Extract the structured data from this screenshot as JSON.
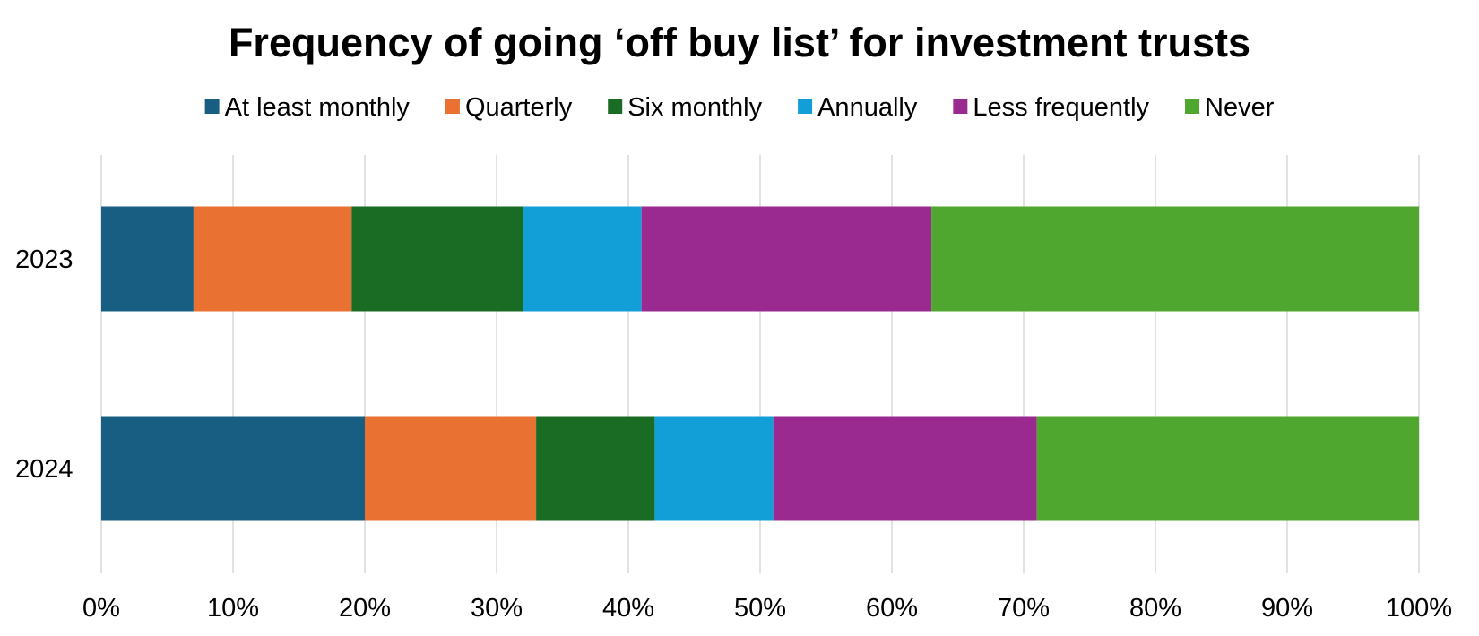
{
  "chart_data": {
    "type": "bar",
    "orientation": "horizontal",
    "stacked": true,
    "title": "Frequency of going ‘off buy list’ for investment trusts",
    "categories": [
      "2023",
      "2024"
    ],
    "series": [
      {
        "name": "At least monthly",
        "color": "#175e82",
        "values": [
          7,
          20
        ]
      },
      {
        "name": "Quarterly",
        "color": "#e97232",
        "values": [
          12,
          13
        ]
      },
      {
        "name": "Six monthly",
        "color": "#1a6b23",
        "values": [
          13,
          9
        ]
      },
      {
        "name": "Annually",
        "color": "#129fd8",
        "values": [
          9,
          9
        ]
      },
      {
        "name": "Less frequently",
        "color": "#9b2a90",
        "values": [
          22,
          20
        ]
      },
      {
        "name": "Never",
        "color": "#4fa72f",
        "values": [
          37,
          29
        ]
      }
    ],
    "xlim": [
      0,
      100
    ],
    "x_ticks": [
      "0%",
      "10%",
      "20%",
      "30%",
      "40%",
      "50%",
      "60%",
      "70%",
      "80%",
      "90%",
      "100%"
    ],
    "xlabel": "",
    "ylabel": "",
    "grid": true,
    "legend_position": "top"
  }
}
